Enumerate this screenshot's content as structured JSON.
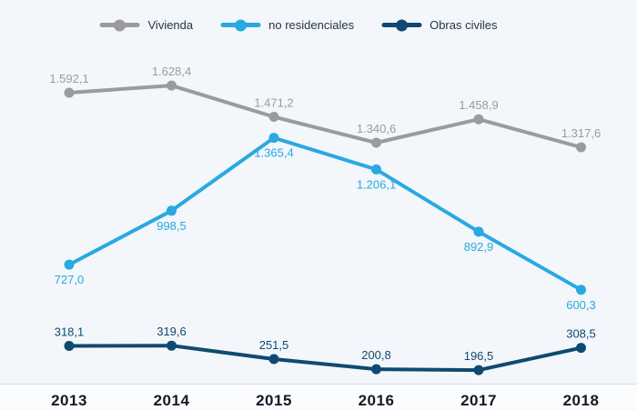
{
  "chart_data": {
    "type": "line",
    "categories": [
      "2013",
      "2014",
      "2015",
      "2016",
      "2017",
      "2018"
    ],
    "series": [
      {
        "name": "Vivienda",
        "color": "#9b9b9b",
        "values": [
          1592.1,
          1628.4,
          1471.2,
          1340.6,
          1458.9,
          1317.6
        ],
        "labels": [
          "1.592,1",
          "1.628,4",
          "1.471,2",
          "1.340,6",
          "1.458,9",
          "1.317,6"
        ],
        "label_position": "above"
      },
      {
        "name": "no residenciales",
        "color": "#29a9e1",
        "values": [
          727.0,
          998.5,
          1365.4,
          1206.1,
          892.9,
          600.3
        ],
        "labels": [
          "727,0",
          "998,5",
          "1.365,4",
          "1.206,1",
          "892,9",
          "600,3"
        ],
        "label_position": "below"
      },
      {
        "name": "Obras civiles",
        "color": "#0f4a70",
        "values": [
          318.1,
          319.6,
          251.5,
          200.8,
          196.5,
          308.5
        ],
        "labels": [
          "318,1",
          "319,6",
          "251,5",
          "200,8",
          "196,5",
          "308,5"
        ],
        "label_position": "above"
      }
    ],
    "title": "",
    "xlabel": "",
    "ylabel": "",
    "ylim": [
      0,
      2059
    ],
    "grid": false,
    "legend_position": "top"
  }
}
